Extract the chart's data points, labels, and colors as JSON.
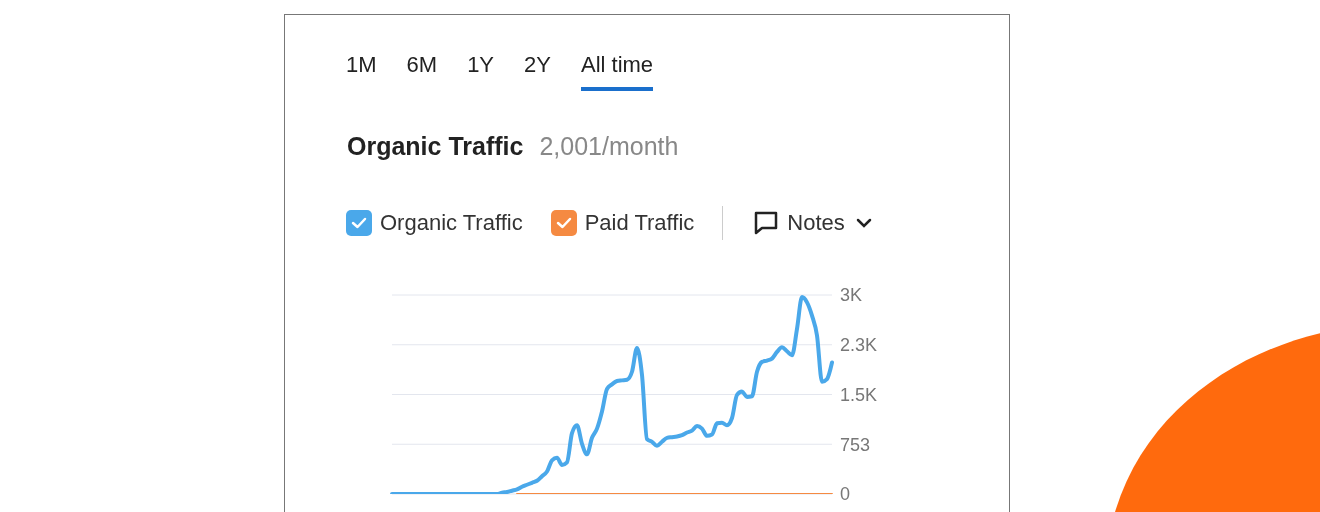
{
  "chart_data": {
    "type": "line",
    "title": "Organic Traffic",
    "subtitle": "2,001/month",
    "annotations": [
      "1M",
      "6M",
      "1Y",
      "2Y",
      "All time",
      "Notes"
    ],
    "categories": [
      null,
      null,
      null,
      null,
      null,
      null,
      null,
      null,
      null,
      null,
      null,
      null,
      null,
      null,
      null,
      null,
      null,
      null,
      null,
      null,
      null,
      null,
      null,
      null,
      null,
      null,
      null,
      null,
      null,
      null,
      null,
      null,
      null,
      null,
      null,
      null,
      null,
      null,
      null,
      null,
      null,
      null,
      null,
      null,
      null,
      null,
      null,
      null,
      null,
      null,
      null,
      null,
      null,
      null,
      null,
      null,
      null,
      null,
      null,
      null,
      null,
      null,
      null,
      null,
      null,
      null,
      null,
      null,
      null,
      null,
      null,
      null,
      null,
      null,
      null,
      null,
      null,
      null,
      null,
      null,
      null,
      null,
      null,
      null,
      null,
      null,
      null,
      null,
      null
    ],
    "series": [
      {
        "name": "Paid Traffic",
        "color": "#f58a42",
        "values": [
          null,
          null,
          null,
          null,
          null,
          null,
          null,
          null,
          null,
          null,
          null,
          null,
          null,
          null,
          null,
          null,
          null,
          null,
          null,
          null,
          null,
          null,
          null,
          null,
          null,
          0,
          0,
          0,
          0,
          0,
          0,
          0,
          0,
          0,
          0,
          0,
          0,
          0,
          0,
          0,
          0,
          0,
          0,
          0,
          0,
          0,
          0,
          0,
          0,
          0,
          0,
          0,
          0,
          0,
          0,
          0,
          0,
          0,
          0,
          0,
          0,
          0,
          0,
          0,
          0,
          0,
          0,
          0,
          0,
          0,
          0,
          0,
          0,
          0,
          0,
          0,
          0,
          0,
          0,
          0,
          0,
          0,
          0,
          0,
          0,
          0,
          0,
          0,
          0
        ]
      },
      {
        "name": "Organic Traffic",
        "color": "#4aa8ea",
        "values": [
          0,
          0,
          0,
          0,
          0,
          0,
          0,
          0,
          0,
          0,
          0,
          0,
          0,
          0,
          0,
          0,
          0,
          0,
          0,
          0,
          0,
          0,
          20,
          30,
          50,
          70,
          110,
          140,
          170,
          200,
          270,
          340,
          510,
          550,
          440,
          480,
          920,
          1040,
          760,
          600,
          850,
          990,
          1250,
          1590,
          1660,
          1710,
          1720,
          1730,
          1850,
          2210,
          1800,
          830,
          790,
          730,
          790,
          850,
          860,
          870,
          890,
          930,
          960,
          1030,
          990,
          880,
          900,
          1070,
          1080,
          1040,
          1150,
          1500,
          1550,
          1470,
          1480,
          1850,
          2000,
          2020,
          2050,
          2150,
          2220,
          2160,
          2100,
          2500,
          2980,
          2900,
          2700,
          2400,
          1700,
          1740,
          1990
        ]
      }
    ],
    "ylim": [
      0,
      3012
    ],
    "yticks": [
      0,
      753,
      {
        "value": 1506,
        "label": "1.5K"
      },
      {
        "value": 2259,
        "label": "2.3K"
      },
      {
        "value": 3012,
        "label": "3K"
      }
    ],
    "grid": "y",
    "legend": "top left",
    "marker": "none",
    "line_style": "solid",
    "tick_labels": "y"
  }
}
